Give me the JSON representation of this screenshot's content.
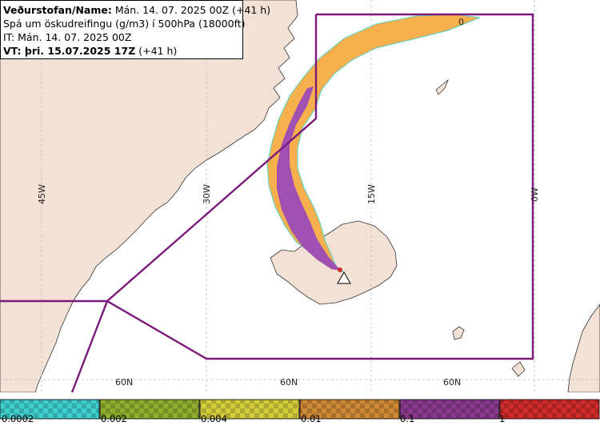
{
  "info": {
    "line1_bold": "Veðurstofan/Name:",
    "line1_rest": " Mán. 14. 07. 2025 00Z (+41 h)",
    "line2": "Spá um öskudreifingu (g/m3) í 500hPa (18000ft)",
    "line3": "IT: Mán. 14. 07. 2025 00Z",
    "line4_bold": "VT: þri. 15.07.2025 17Z",
    "line4_rest": " (+41 h)"
  },
  "grid_labels": {
    "lon": [
      "45W",
      "30W",
      "15W",
      "0W"
    ],
    "lat": [
      "60N",
      "60N",
      "60N"
    ]
  },
  "marker_label": "0",
  "legend": {
    "ticks": [
      "0.0002",
      "0.002",
      "0.004",
      "0.01",
      "0.1",
      "1"
    ],
    "colors": [
      "#3fcfcf",
      "#8fae2e",
      "#d4cd3a",
      "#cf8a36",
      "#8a3a8e",
      "#cf2b2b"
    ]
  },
  "map_colors": {
    "land": "#f2e1d4",
    "sea": "#ffffff",
    "boundary": "#7b1a7b",
    "plume_outer": "#f7b04d",
    "plume_inner": "#a050b0"
  }
}
